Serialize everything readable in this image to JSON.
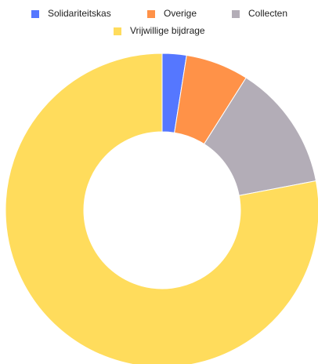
{
  "chart_data": {
    "type": "pie",
    "donut": true,
    "categories": [
      "Solidariteitskas",
      "Overige",
      "Collecten",
      "Vrijwillige bijdrage"
    ],
    "values": [
      2.5,
      6.5,
      13,
      78
    ],
    "colors": [
      "#5577ff",
      "#ff9248",
      "#b3adb7",
      "#ffdc5c"
    ],
    "legend": "top"
  }
}
